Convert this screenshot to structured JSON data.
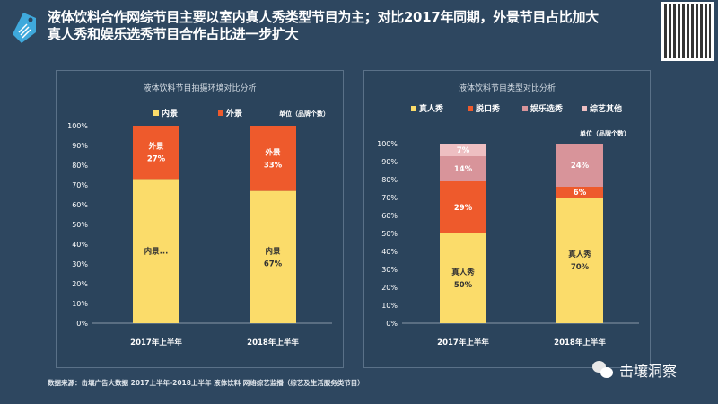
{
  "header": {
    "title_line1": "液体饮料合作网综节目主要以室内真人秀类型节目为主；对比2017年同期，外景节目占比加大",
    "title_line2": "真人秀和娱乐选秀节目合作占比进一步扩大"
  },
  "footer": {
    "source": "数据来源：击壤广告大数据 2017上半年-2018上半年 液体饮料  网络综艺监播（综艺及生活服务类节目）",
    "brand": "击壤洞察"
  },
  "chart_data": [
    {
      "type": "bar",
      "stacked": true,
      "title": "液体饮料节目拍摄环境对比分析",
      "unit": "单位（品牌个数）",
      "categories": [
        "2017年上半年",
        "2018年上半年"
      ],
      "yticks": [
        "0%",
        "10%",
        "20%",
        "30%",
        "40%",
        "50%",
        "60%",
        "70%",
        "80%",
        "90%",
        "100%"
      ],
      "ylim": [
        0,
        100
      ],
      "series": [
        {
          "name": "内景",
          "color": "#fbdc6a",
          "values": [
            73,
            67
          ],
          "labels": [
            "内景...",
            "内景\n67%"
          ]
        },
        {
          "name": "外景",
          "color": "#ee5a2c",
          "values": [
            27,
            33
          ],
          "labels": [
            "外景\n27%",
            "外景\n33%"
          ]
        }
      ],
      "legend": "top"
    },
    {
      "type": "bar",
      "stacked": true,
      "title": "液体饮料节目类型对比分析",
      "unit": "单位（品牌个数）",
      "categories": [
        "2017年上半年",
        "2018年上半年"
      ],
      "yticks": [
        "0%",
        "10%",
        "20%",
        "30%",
        "40%",
        "50%",
        "60%",
        "70%",
        "80%",
        "90%",
        "100%"
      ],
      "ylim": [
        0,
        100
      ],
      "series": [
        {
          "name": "真人秀",
          "color": "#fbdc6a",
          "values": [
            50,
            70
          ],
          "labels": [
            "真人秀\n50%",
            "真人秀\n70%"
          ]
        },
        {
          "name": "脱口秀",
          "color": "#ee5a2c",
          "values": [
            29,
            6
          ],
          "labels": [
            "29%",
            "6%"
          ]
        },
        {
          "name": "娱乐选秀",
          "color": "#d8949a",
          "values": [
            14,
            24
          ],
          "labels": [
            "14%",
            "24%"
          ]
        },
        {
          "name": "综艺其他",
          "color": "#eebfc2",
          "values": [
            7,
            0
          ],
          "labels": [
            "7%",
            ""
          ]
        }
      ],
      "legend": "top"
    }
  ]
}
